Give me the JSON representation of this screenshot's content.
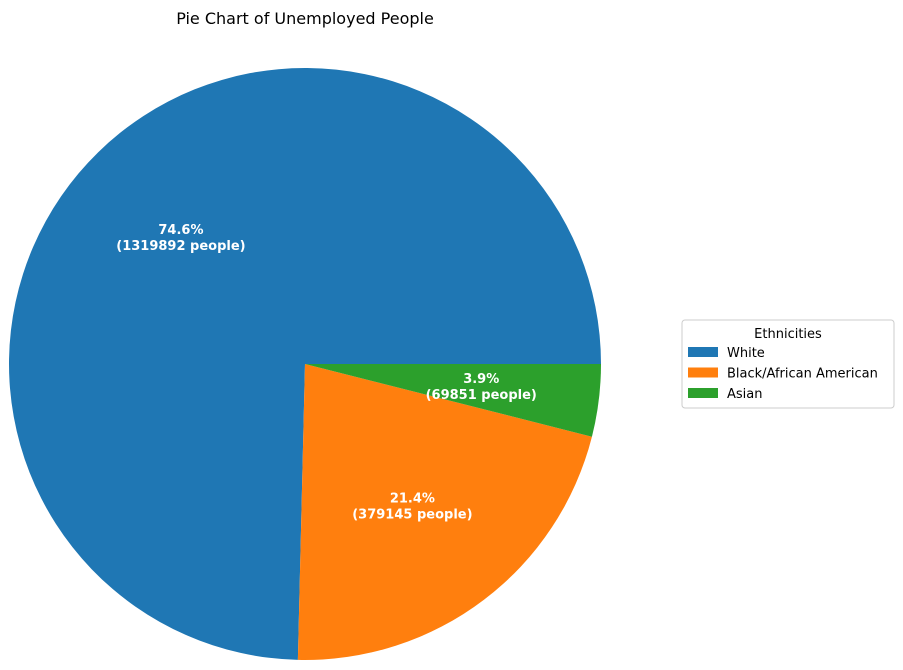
{
  "chart_data": {
    "type": "pie",
    "title": "Pie Chart of Unemployed People",
    "legend_title": "Ethnicities",
    "legend_position": "right",
    "slices": [
      {
        "label": "White",
        "value": 1319892,
        "percent_label": "74.6%",
        "count_label": "(1319892 people)",
        "color": "#1f77b4"
      },
      {
        "label": "Black/African American",
        "value": 379145,
        "percent_label": "21.4%",
        "count_label": "(379145 people)",
        "color": "#ff7f0e"
      },
      {
        "label": "Asian",
        "value": 69851,
        "percent_label": "3.9%",
        "count_label": "(69851 people)",
        "color": "#2ca02c"
      }
    ]
  }
}
